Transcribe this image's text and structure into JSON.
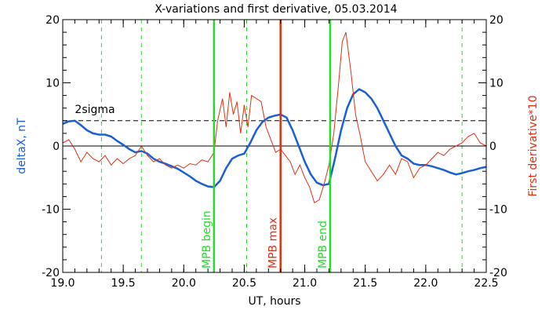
{
  "chart_data": {
    "type": "line",
    "title": "X-variations and first derivative, 05.03.2014",
    "xlabel": "UT, hours",
    "ylabel": "deltaX, nT",
    "y2label": "First derivative*10",
    "xlim": [
      19.0,
      22.5
    ],
    "ylim": [
      -20,
      20
    ],
    "y2lim": [
      -20,
      20
    ],
    "xticks": [
      19.0,
      19.5,
      20.0,
      20.5,
      21.0,
      21.5,
      22.0,
      22.5
    ],
    "xtick_labels": [
      "19.0",
      "19.5",
      "20.0",
      "20.5",
      "21.0",
      "21.5",
      "22.0",
      "22.5"
    ],
    "yticks": [
      -20,
      -10,
      0,
      10,
      20
    ],
    "ytick_labels": [
      "-20",
      "-10",
      "0",
      "10",
      "20"
    ],
    "colors": {
      "deltaX": "#1a5fd6",
      "derivative": "#e03010",
      "mpb_bound": "#22dd22",
      "mpb_max": "#e03010",
      "axis": "#000000"
    },
    "sigma": {
      "label": "2sigma",
      "value": 4.0
    },
    "zero_line": 0,
    "dashed_green_lines": [
      19.32,
      19.65,
      20.52,
      22.3
    ],
    "markers": [
      {
        "label": "MPB begin",
        "x": 20.25,
        "color": "#22dd22"
      },
      {
        "label": "MPB max",
        "x": 20.8,
        "color": "#e03010"
      },
      {
        "label": "MPB end",
        "x": 21.21,
        "color": "#22dd22"
      }
    ],
    "series": [
      {
        "key": "deltaX",
        "axis": "left",
        "x": [
          19.0,
          19.05,
          19.1,
          19.15,
          19.2,
          19.25,
          19.3,
          19.35,
          19.4,
          19.45,
          19.5,
          19.55,
          19.6,
          19.65,
          19.7,
          19.75,
          19.8,
          19.85,
          19.9,
          19.95,
          20.0,
          20.05,
          20.1,
          20.15,
          20.2,
          20.25,
          20.3,
          20.35,
          20.4,
          20.45,
          20.5,
          20.55,
          20.6,
          20.65,
          20.7,
          20.75,
          20.8,
          20.85,
          20.9,
          20.95,
          21.0,
          21.05,
          21.1,
          21.15,
          21.2,
          21.25,
          21.3,
          21.35,
          21.4,
          21.45,
          21.5,
          21.55,
          21.6,
          21.65,
          21.7,
          21.75,
          21.8,
          21.85,
          21.9,
          21.95,
          22.0,
          22.05,
          22.1,
          22.15,
          22.2,
          22.25,
          22.3,
          22.35,
          22.4,
          22.45,
          22.5
        ],
        "values": [
          3.5,
          3.9,
          4.0,
          3.3,
          2.5,
          2.0,
          1.8,
          1.8,
          1.5,
          0.8,
          0.2,
          -0.5,
          -1.0,
          -0.8,
          -1.2,
          -2.0,
          -2.5,
          -2.8,
          -3.2,
          -3.6,
          -4.2,
          -4.8,
          -5.5,
          -6.0,
          -6.4,
          -6.5,
          -5.5,
          -3.5,
          -2.0,
          -1.5,
          -1.2,
          0.5,
          2.5,
          3.8,
          4.5,
          4.8,
          5.0,
          4.5,
          2.5,
          0.0,
          -2.5,
          -4.5,
          -5.8,
          -6.2,
          -6.0,
          -2.0,
          2.5,
          6.0,
          8.2,
          9.0,
          8.5,
          7.5,
          6.0,
          4.0,
          2.0,
          0.0,
          -1.5,
          -2.0,
          -2.8,
          -3.0,
          -3.0,
          -3.2,
          -3.5,
          -3.8,
          -4.2,
          -4.5,
          -4.3,
          -4.0,
          -3.8,
          -3.5,
          -3.3
        ]
      },
      {
        "key": "derivative",
        "axis": "right",
        "x": [
          19.0,
          19.05,
          19.1,
          19.15,
          19.2,
          19.25,
          19.3,
          19.35,
          19.4,
          19.45,
          19.5,
          19.55,
          19.6,
          19.65,
          19.7,
          19.75,
          19.8,
          19.85,
          19.9,
          19.95,
          20.0,
          20.05,
          20.1,
          20.15,
          20.2,
          20.25,
          20.28,
          20.32,
          20.35,
          20.38,
          20.41,
          20.44,
          20.47,
          20.5,
          20.53,
          20.56,
          20.6,
          20.64,
          20.68,
          20.72,
          20.76,
          20.8,
          20.84,
          20.88,
          20.92,
          20.96,
          21.0,
          21.04,
          21.08,
          21.12,
          21.16,
          21.2,
          21.24,
          21.28,
          21.31,
          21.34,
          21.38,
          21.42,
          21.46,
          21.5,
          21.55,
          21.6,
          21.65,
          21.7,
          21.75,
          21.8,
          21.85,
          21.9,
          21.95,
          22.0,
          22.05,
          22.1,
          22.15,
          22.2,
          22.25,
          22.3,
          22.35,
          22.4,
          22.45,
          22.5
        ],
        "values": [
          0.5,
          1.0,
          -0.5,
          -2.5,
          -1.0,
          -2.0,
          -2.5,
          -1.5,
          -3.0,
          -2.0,
          -2.8,
          -2.0,
          -1.5,
          0.0,
          -1.5,
          -2.5,
          -2.0,
          -3.0,
          -3.5,
          -3.0,
          -3.5,
          -2.8,
          -3.0,
          -2.2,
          -2.5,
          -1.0,
          4.0,
          7.5,
          3.0,
          8.5,
          5.0,
          7.0,
          2.0,
          6.5,
          3.0,
          8.0,
          7.5,
          7.0,
          3.0,
          1.0,
          -1.0,
          -0.5,
          -1.5,
          -2.5,
          -4.5,
          -3.0,
          -5.0,
          -6.5,
          -9.0,
          -8.5,
          -6.0,
          -3.0,
          2.0,
          10.0,
          16.5,
          18.0,
          12.0,
          5.0,
          1.5,
          -2.5,
          -4.0,
          -5.5,
          -4.5,
          -3.0,
          -4.5,
          -2.0,
          -2.5,
          -5.0,
          -3.5,
          -3.0,
          -2.0,
          -1.0,
          -1.5,
          -0.5,
          0.0,
          0.5,
          1.5,
          2.0,
          0.5,
          0.0
        ]
      }
    ]
  }
}
